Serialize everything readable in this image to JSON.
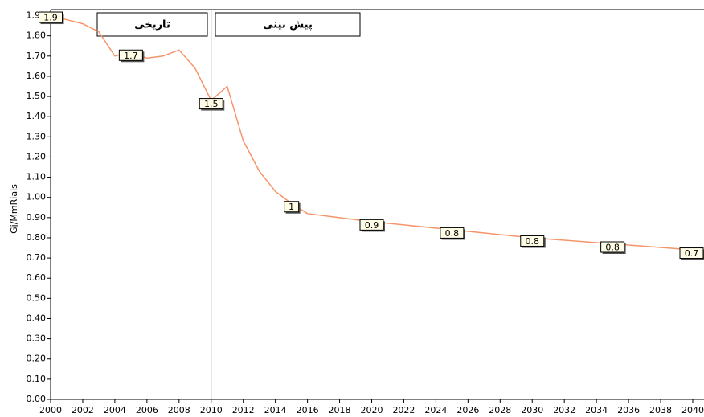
{
  "chart_data": {
    "type": "line",
    "ylabel": "Gj/MmRials",
    "annotations": [
      "تاریخی",
      "پیش بینی"
    ],
    "divider_x": 2010,
    "x": [
      2000,
      2001,
      2002,
      2003,
      2004,
      2005,
      2006,
      2007,
      2008,
      2009,
      2010,
      2011,
      2012,
      2013,
      2014,
      2015,
      2016,
      2018,
      2020,
      2025,
      2030,
      2035,
      2040
    ],
    "series": [
      {
        "name": null,
        "color": "#f5956a",
        "values": [
          1.9,
          1.88,
          1.86,
          1.82,
          1.7,
          1.72,
          1.69,
          1.7,
          1.73,
          1.64,
          1.48,
          1.55,
          1.28,
          1.13,
          1.03,
          0.97,
          0.92,
          0.9,
          0.88,
          0.84,
          0.8,
          0.77,
          0.74
        ],
        "value_labels": [
          "1.9",
          null,
          null,
          null,
          null,
          "1.7",
          null,
          null,
          null,
          null,
          "1.5",
          null,
          null,
          null,
          null,
          "1",
          null,
          null,
          "0.9",
          "0.8",
          "0.8",
          "0.8",
          "0.7"
        ]
      }
    ],
    "xlim": [
      2000,
      2040
    ],
    "xticks": [
      2000,
      2002,
      2004,
      2006,
      2008,
      2010,
      2012,
      2014,
      2016,
      2018,
      2020,
      2022,
      2024,
      2026,
      2028,
      2030,
      2032,
      2034,
      2036,
      2038,
      2040
    ],
    "ylim": [
      0,
      1.93
    ],
    "yticks": [
      {
        "value": 0,
        "label": "0.00"
      },
      {
        "value": 0.1,
        "label": "0.10"
      },
      {
        "value": 0.2,
        "label": "0.20"
      },
      {
        "value": 0.3,
        "label": "0.30"
      },
      {
        "value": 0.4,
        "label": "0.40"
      },
      {
        "value": 0.5,
        "label": "0.50"
      },
      {
        "value": 0.6,
        "label": "0.60"
      },
      {
        "value": 0.7,
        "label": "0.70"
      },
      {
        "value": 0.8,
        "label": "0.80"
      },
      {
        "value": 0.9,
        "label": "0.90"
      },
      {
        "value": 1.0,
        "label": "1.00"
      },
      {
        "value": 1.1,
        "label": "1.10"
      },
      {
        "value": 1.2,
        "label": "1.20"
      },
      {
        "value": 1.3,
        "label": "1.30"
      },
      {
        "value": 1.4,
        "label": "1.40"
      },
      {
        "value": 1.5,
        "label": "1.50"
      },
      {
        "value": 1.6,
        "label": "1.60"
      },
      {
        "value": 1.7,
        "label": "1.70"
      },
      {
        "value": 1.8,
        "label": "1.80"
      },
      {
        "value": 1.9,
        "label": "1.90"
      }
    ]
  }
}
